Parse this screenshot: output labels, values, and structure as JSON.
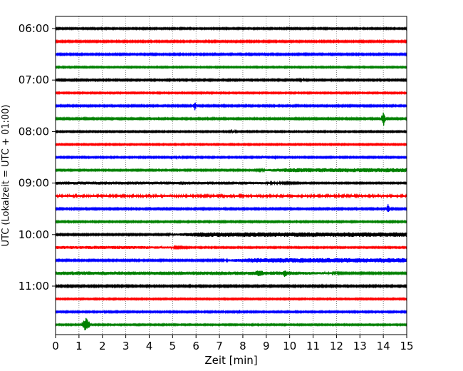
{
  "chart_data": {
    "type": "line",
    "subtype": "helicorder",
    "xlabel": "Zeit  [min]",
    "ylabel": "UTC (Lokalzeit = UTC + 01:00)",
    "xlim": [
      0,
      15
    ],
    "x_ticks": [
      "0",
      "1",
      "2",
      "3",
      "4",
      "5",
      "6",
      "7",
      "8",
      "9",
      "10",
      "11",
      "12",
      "13",
      "14",
      "15"
    ],
    "y_tick_labels": [
      "06:00",
      "07:00",
      "08:00",
      "09:00",
      "10:00",
      "11:00"
    ],
    "grid_x": true,
    "trace_interval_min": 15,
    "trace_colors": [
      "#000000",
      "#ff0000",
      "#0000ff",
      "#008000"
    ],
    "traces": [
      {
        "start": "06:00",
        "color": "#000000",
        "amplitude": 0.13,
        "events": [
          {
            "t": 13.2,
            "width": 2.0,
            "amp": 0.12
          }
        ]
      },
      {
        "start": "06:15",
        "color": "#ff0000",
        "amplitude": 0.14,
        "events": []
      },
      {
        "start": "06:30",
        "color": "#0000ff",
        "amplitude": 0.14,
        "events": []
      },
      {
        "start": "06:45",
        "color": "#008000",
        "amplitude": 0.12,
        "events": []
      },
      {
        "start": "07:00",
        "color": "#000000",
        "amplitude": 0.14,
        "events": [
          {
            "t": 10.5,
            "width": 0.6,
            "amp": 0.2
          }
        ]
      },
      {
        "start": "07:15",
        "color": "#ff0000",
        "amplitude": 0.12,
        "events": []
      },
      {
        "start": "07:30",
        "color": "#0000ff",
        "amplitude": 0.14,
        "events": [
          {
            "t": 5.95,
            "width": 0.08,
            "amp": 0.9
          }
        ]
      },
      {
        "start": "07:45",
        "color": "#008000",
        "amplitude": 0.14,
        "events": [
          {
            "t": 3.5,
            "width": 1.0,
            "amp": 0.12
          },
          {
            "t": 14.0,
            "width": 0.12,
            "amp": 1.6
          }
        ]
      },
      {
        "start": "08:00",
        "color": "#000000",
        "amplitude": 0.12,
        "events": [
          {
            "t": 7.6,
            "width": 0.3,
            "amp": 0.25
          }
        ]
      },
      {
        "start": "08:15",
        "color": "#ff0000",
        "amplitude": 0.12,
        "events": [
          {
            "t": 10.0,
            "width": 0.6,
            "amp": 0.1
          }
        ]
      },
      {
        "start": "08:30",
        "color": "#0000ff",
        "amplitude": 0.13,
        "events": [
          {
            "t": 4.95,
            "width": 0.1,
            "amp": 0.45
          },
          {
            "t": 5.3,
            "width": 0.2,
            "amp": 0.4
          },
          {
            "t": 5.95,
            "width": 0.1,
            "amp": 0.3
          },
          {
            "t": 8.9,
            "width": 0.1,
            "amp": 0.35
          },
          {
            "t": 9.4,
            "width": 0.15,
            "amp": 0.2
          }
        ]
      },
      {
        "start": "08:45",
        "color": "#008000",
        "amplitude": 0.13,
        "ramp_from": 8.5,
        "ramp_amp": 0.4
      },
      {
        "start": "09:00",
        "color": "#000000",
        "amplitude": 0.3,
        "events": [
          {
            "t": 5.4,
            "width": 0.08,
            "amp": 0.5
          }
        ],
        "decay_after": 8.0
      },
      {
        "start": "09:15",
        "color": "#ff0000",
        "amplitude": 0.2,
        "events": [
          {
            "t": 12.1,
            "width": 0.08,
            "amp": 0.5
          }
        ]
      },
      {
        "start": "09:30",
        "color": "#0000ff",
        "amplitude": 0.14,
        "events": [
          {
            "t": 14.2,
            "width": 0.1,
            "amp": 1.1
          }
        ]
      },
      {
        "start": "09:45",
        "color": "#008000",
        "amplitude": 0.13,
        "events": [
          {
            "t": 3.0,
            "width": 0.3,
            "amp": 0.1
          }
        ]
      },
      {
        "start": "10:00",
        "color": "#000000",
        "amplitude": 0.14,
        "ramp_from": 4.7,
        "ramp_amp": 0.45
      },
      {
        "start": "10:15",
        "color": "#ff0000",
        "amplitude": 0.3,
        "decay_after": 3.5
      },
      {
        "start": "10:30",
        "color": "#0000ff",
        "amplitude": 0.14,
        "ramp_from": 7.0,
        "ramp_amp": 0.45
      },
      {
        "start": "10:45",
        "color": "#008000",
        "amplitude": 0.35,
        "events": [
          {
            "t": 8.7,
            "width": 0.4,
            "amp": 0.7
          },
          {
            "t": 9.8,
            "width": 0.15,
            "amp": 0.9
          }
        ],
        "decay_after": 10.0
      },
      {
        "start": "11:00",
        "color": "#000000",
        "amplitude": 0.15,
        "events": []
      },
      {
        "start": "11:15",
        "color": "#ff0000",
        "amplitude": 0.12,
        "events": []
      },
      {
        "start": "11:30",
        "color": "#0000ff",
        "amplitude": 0.13,
        "events": [
          {
            "t": 2.0,
            "width": 0.15,
            "amp": 0.35
          },
          {
            "t": 7.85,
            "width": 0.1,
            "amp": 0.45
          },
          {
            "t": 7.2,
            "width": 0.1,
            "amp": 0.3
          }
        ]
      },
      {
        "start": "11:45",
        "color": "#008000",
        "amplitude": 0.12,
        "events": [
          {
            "t": 1.3,
            "width": 0.25,
            "amp": 1.4
          }
        ]
      }
    ]
  }
}
